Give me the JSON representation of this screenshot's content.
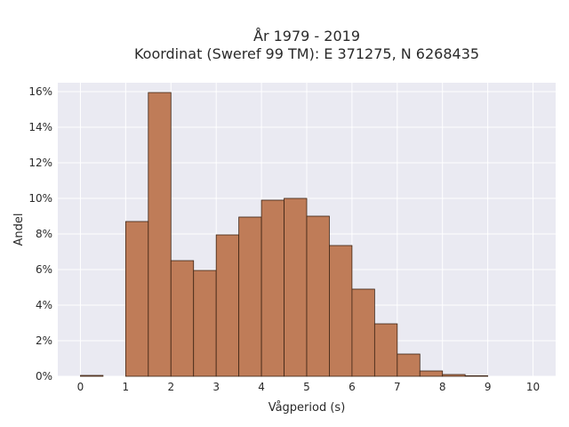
{
  "chart_data": {
    "type": "bar",
    "title": "År 1979 - 2019",
    "subtitle": "Koordinat (Sweref 99 TM): E 371275, N 6268435",
    "xlabel": "Vågperiod (s)",
    "ylabel": "Andel",
    "xlim": [
      -0.5,
      10.5
    ],
    "ylim": [
      0,
      16.5
    ],
    "x_ticks": [
      0,
      1,
      2,
      3,
      4,
      5,
      6,
      7,
      8,
      9,
      10
    ],
    "y_ticks": [
      0,
      2,
      4,
      6,
      8,
      10,
      12,
      14,
      16
    ],
    "y_tick_suffix": "%",
    "bin_width": 0.5,
    "bins": [
      {
        "start": 0.0,
        "value": 0.05
      },
      {
        "start": 0.5,
        "value": 0.0
      },
      {
        "start": 1.0,
        "value": 8.7
      },
      {
        "start": 1.5,
        "value": 15.95
      },
      {
        "start": 2.0,
        "value": 6.5
      },
      {
        "start": 2.5,
        "value": 5.95
      },
      {
        "start": 3.0,
        "value": 7.95
      },
      {
        "start": 3.5,
        "value": 8.95
      },
      {
        "start": 4.0,
        "value": 9.9
      },
      {
        "start": 4.5,
        "value": 10.0
      },
      {
        "start": 5.0,
        "value": 9.0
      },
      {
        "start": 5.5,
        "value": 7.35
      },
      {
        "start": 6.0,
        "value": 4.9
      },
      {
        "start": 6.5,
        "value": 2.95
      },
      {
        "start": 7.0,
        "value": 1.25
      },
      {
        "start": 7.5,
        "value": 0.3
      },
      {
        "start": 8.0,
        "value": 0.1
      },
      {
        "start": 8.5,
        "value": 0.03
      }
    ],
    "bar_color": "#bf7c58",
    "bar_edge_color": "#3d2414",
    "background_color": "#eaeaf2",
    "grid": true,
    "grid_color": "#ffffff",
    "legend": "none"
  }
}
